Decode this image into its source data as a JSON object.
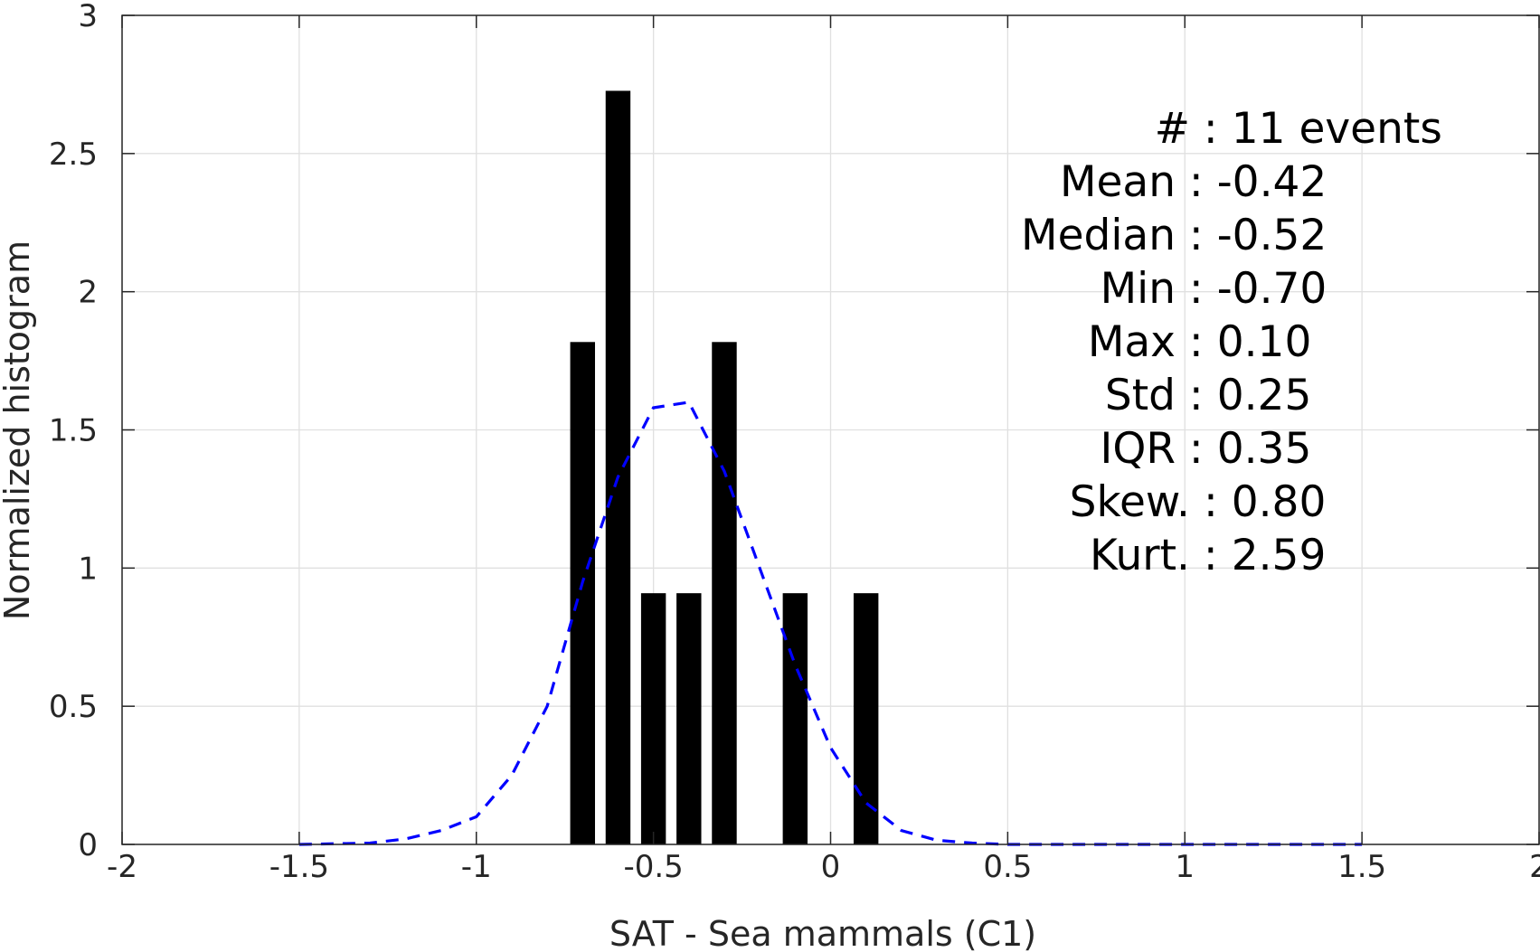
{
  "chart_data": {
    "type": "bar",
    "xlabel": "SAT - Sea mammals (C1)",
    "ylabel": "Normalized histogram",
    "xlim": [
      -2,
      2
    ],
    "ylim": [
      0,
      3
    ],
    "x_ticks": [
      "-2",
      "-1.5",
      "-1",
      "-0.5",
      "0",
      "0.5",
      "1",
      "1.5",
      "2"
    ],
    "y_ticks": [
      "0",
      "0.5",
      "1",
      "1.5",
      "2",
      "2.5",
      "3"
    ],
    "grid": true,
    "bar_width": 0.07,
    "bars": [
      {
        "x": -0.7,
        "y": 1.818
      },
      {
        "x": -0.6,
        "y": 2.727
      },
      {
        "x": -0.5,
        "y": 0.909
      },
      {
        "x": -0.4,
        "y": 0.909
      },
      {
        "x": -0.3,
        "y": 1.818
      },
      {
        "x": -0.1,
        "y": 0.909
      },
      {
        "x": 0.1,
        "y": 0.909
      }
    ],
    "fit_curve": {
      "style": "dashed",
      "color": "#0000ff",
      "points": [
        [
          -1.5,
          0.0
        ],
        [
          -1.3,
          0.005
        ],
        [
          -1.2,
          0.02
        ],
        [
          -1.1,
          0.05
        ],
        [
          -1.0,
          0.1
        ],
        [
          -0.9,
          0.25
        ],
        [
          -0.8,
          0.5
        ],
        [
          -0.7,
          0.95
        ],
        [
          -0.6,
          1.33
        ],
        [
          -0.5,
          1.58
        ],
        [
          -0.4,
          1.6
        ],
        [
          -0.3,
          1.35
        ],
        [
          -0.2,
          1.0
        ],
        [
          -0.1,
          0.65
        ],
        [
          0.0,
          0.35
        ],
        [
          0.1,
          0.15
        ],
        [
          0.2,
          0.05
        ],
        [
          0.3,
          0.015
        ],
        [
          0.4,
          0.005
        ],
        [
          0.5,
          0.0
        ],
        [
          1.0,
          0.0
        ],
        [
          1.5,
          0.0
        ]
      ]
    },
    "stats": [
      "#  : 11 events",
      "Mean : -0.42",
      "Median : -0.52",
      "Min : -0.70",
      "Max : 0.10",
      "Std : 0.25",
      "IQR : 0.35",
      "Skew. : 0.80",
      "Kurt. : 2.59"
    ],
    "colors": {
      "bars": "#000000",
      "curve": "#0000ff",
      "grid": "#e0e0e0",
      "axis": "#262626"
    }
  }
}
